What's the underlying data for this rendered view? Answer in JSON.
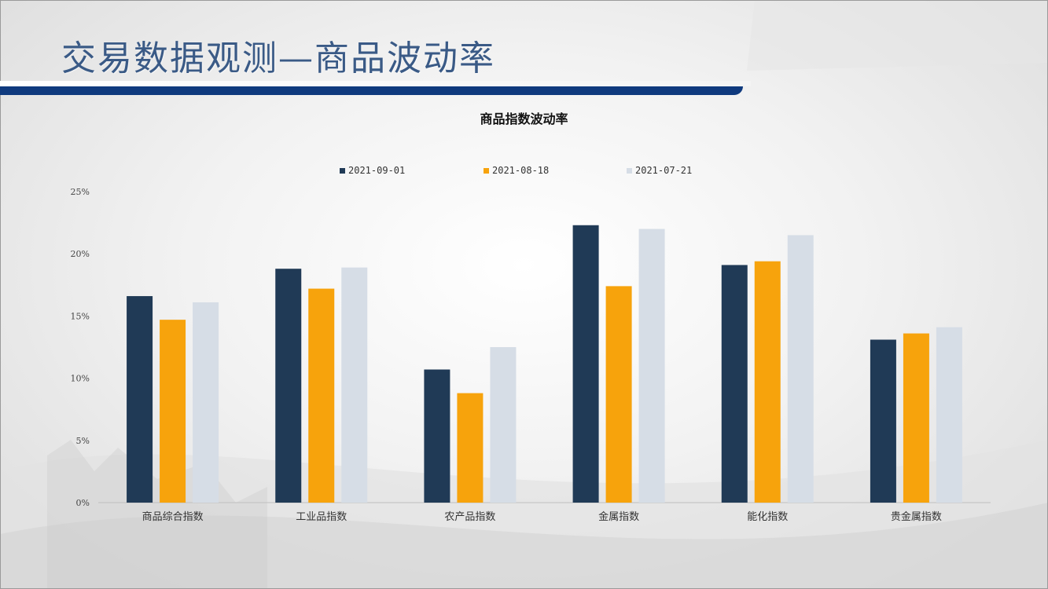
{
  "page": {
    "title": "交易数据观测—商品波动率",
    "accent_color": "#0f3a7e",
    "title_color": "#3a5a86"
  },
  "chart_data": {
    "type": "bar",
    "title": "商品指数波动率",
    "categories": [
      "商品综合指数",
      "工业品指数",
      "农产品指数",
      "金属指数",
      "能化指数",
      "贵金属指数"
    ],
    "series": [
      {
        "name": "2021-09-01",
        "color": "#203a56",
        "values": [
          16.6,
          18.8,
          10.7,
          22.3,
          19.1,
          13.1
        ]
      },
      {
        "name": "2021-08-18",
        "color": "#f7a30c",
        "values": [
          14.7,
          17.2,
          8.8,
          17.4,
          19.4,
          13.6
        ]
      },
      {
        "name": "2021-07-21",
        "color": "#d6dde6",
        "values": [
          16.1,
          18.9,
          12.5,
          22.0,
          21.5,
          14.1
        ]
      }
    ],
    "y_ticks": [
      "0%",
      "5%",
      "10%",
      "15%",
      "20%",
      "25%"
    ],
    "ylim": [
      0,
      25
    ],
    "grid": false,
    "legend_position": "top"
  }
}
